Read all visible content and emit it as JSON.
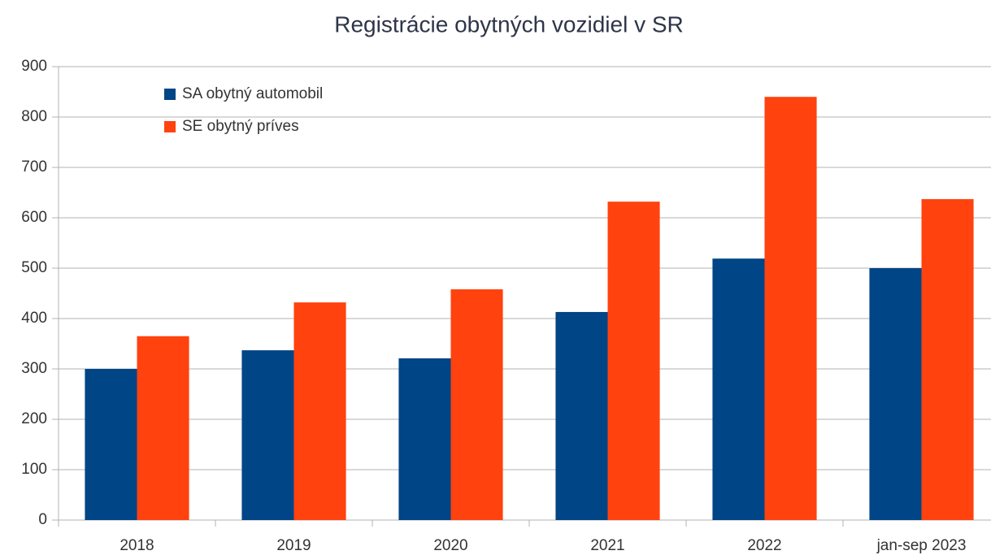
{
  "chart_data": {
    "type": "bar",
    "title": "Registrácie obytných vozidiel v SR",
    "categories": [
      "2018",
      "2019",
      "2020",
      "2021",
      "2022",
      "jan-sep 2023"
    ],
    "series": [
      {
        "name": "SA obytný automobil",
        "color": "#004586",
        "values": [
          300,
          337,
          321,
          413,
          519,
          500
        ]
      },
      {
        "name": "SE obytný príves",
        "color": "#ff420e",
        "values": [
          365,
          432,
          458,
          632,
          840,
          637
        ]
      }
    ],
    "ylim": [
      0,
      900
    ],
    "yticks": [
      0,
      100,
      200,
      300,
      400,
      500,
      600,
      700,
      800,
      900
    ],
    "grid": true,
    "legend": "top-left"
  }
}
